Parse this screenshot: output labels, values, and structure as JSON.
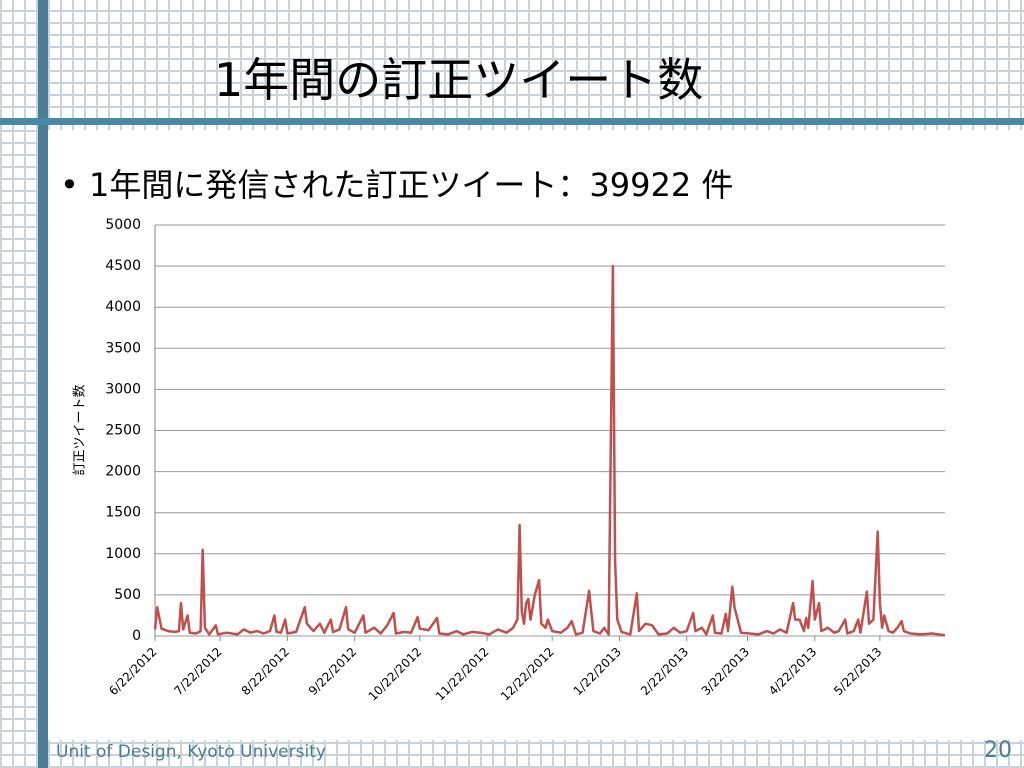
{
  "slide": {
    "title": "1年間の訂正ツイート数",
    "bullet": "1年間に発信された訂正ツイート：39922 件",
    "footer": "Unit of Design, Kyoto University",
    "page_number": "20"
  },
  "chart_data": {
    "type": "line",
    "y_label": "訂正ツイート数",
    "color": "#c0504d",
    "grid": true,
    "x": [
      "6/22/2012",
      "6/23/2012",
      "6/25/2012",
      "6/28/2012",
      "7/1/2012",
      "7/3/2012",
      "7/4/2012",
      "7/5/2012",
      "7/7/2012",
      "7/8/2012",
      "7/11/2012",
      "7/13/2012",
      "7/14/2012",
      "7/15/2012",
      "7/17/2012",
      "7/20/2012",
      "7/21/2012",
      "7/25/2012",
      "7/30/2012",
      "8/2/2012",
      "8/5/2012",
      "8/8/2012",
      "8/11/2012",
      "8/14/2012",
      "8/16/2012",
      "8/17/2012",
      "8/19/2012",
      "8/21/2012",
      "8/22/2012",
      "8/26/2012",
      "8/30/2012",
      "8/31/2012",
      "9/3/2012",
      "9/6/2012",
      "9/8/2012",
      "9/11/2012",
      "9/12/2012",
      "9/15/2012",
      "9/18/2012",
      "9/19/2012",
      "9/22/2012",
      "9/26/2012",
      "9/27/2012",
      "10/1/2012",
      "10/4/2012",
      "10/7/2012",
      "10/10/2012",
      "10/11/2012",
      "10/15/2012",
      "10/18/2012",
      "10/21/2012",
      "10/22/2012",
      "10/26/2012",
      "10/30/2012",
      "10/31/2012",
      "11/4/2012",
      "11/8/2012",
      "11/11/2012",
      "11/15/2012",
      "11/19/2012",
      "11/23/2012",
      "11/27/2012",
      "12/1/2012",
      "12/4/2012",
      "12/6/2012",
      "12/7/2012",
      "12/8/2012",
      "12/9/2012",
      "12/10/2012",
      "12/11/2012",
      "12/12/2012",
      "12/14/2012",
      "12/16/2012",
      "12/17/2012",
      "12/19/2012",
      "12/20/2012",
      "12/22/2012",
      "12/26/2012",
      "12/29/2012",
      "12/31/2012",
      "1/2/2013",
      "1/5/2013",
      "1/8/2013",
      "1/9/2013",
      "1/10/2013",
      "1/13/2013",
      "1/15/2013",
      "1/17/2013",
      "1/19/2013",
      "1/20/2013",
      "1/21/2013",
      "1/23/2013",
      "1/27/2013",
      "1/30/2013",
      "1/31/2013",
      "2/3/2013",
      "2/6/2013",
      "2/9/2013",
      "2/13/2013",
      "2/16/2013",
      "2/19/2013",
      "2/22/2013",
      "2/25/2013",
      "2/26/2013",
      "3/1/2013",
      "3/3/2013",
      "3/6/2013",
      "3/7/2013",
      "3/10/2013",
      "3/12/2013",
      "3/13/2013",
      "3/15/2013",
      "3/16/2013",
      "3/17/2013",
      "3/19/2013",
      "3/23/2013",
      "3/27/2013",
      "3/31/2013",
      "4/3/2013",
      "4/6/2013",
      "4/9/2013",
      "4/12/2013",
      "4/13/2013",
      "4/15/2013",
      "4/17/2013",
      "4/18/2013",
      "4/19/2013",
      "4/21/2013",
      "4/22/2013",
      "4/24/2013",
      "4/25/2013",
      "4/28/2013",
      "5/1/2013",
      "5/3/2013",
      "5/6/2013",
      "5/7/2013",
      "5/10/2013",
      "5/12/2013",
      "5/13/2013",
      "5/16/2013",
      "5/17/2013",
      "5/19/2013",
      "5/21/2013",
      "5/22/2013",
      "5/23/2013",
      "5/24/2013",
      "5/26/2013",
      "5/28/2013",
      "5/30/2013",
      "6/1/2013",
      "6/2/2013",
      "6/5/2013",
      "6/10/2013",
      "6/15/2013",
      "6/18/2013",
      "6/21/2013"
    ],
    "values": [
      80,
      350,
      90,
      60,
      50,
      60,
      400,
      80,
      250,
      40,
      30,
      60,
      1050,
      100,
      20,
      130,
      20,
      40,
      20,
      80,
      40,
      60,
      30,
      60,
      250,
      50,
      40,
      200,
      30,
      50,
      350,
      150,
      60,
      150,
      40,
      200,
      50,
      80,
      350,
      80,
      40,
      250,
      40,
      100,
      30,
      130,
      280,
      30,
      50,
      40,
      230,
      90,
      70,
      220,
      30,
      20,
      60,
      20,
      50,
      40,
      20,
      80,
      40,
      100,
      200,
      1350,
      300,
      150,
      400,
      450,
      200,
      500,
      680,
      150,
      100,
      200,
      60,
      40,
      100,
      180,
      20,
      40,
      550,
      300,
      60,
      30,
      100,
      20,
      4500,
      900,
      200,
      50,
      20,
      520,
      60,
      150,
      130,
      20,
      30,
      100,
      40,
      60,
      280,
      60,
      100,
      20,
      250,
      40,
      30,
      270,
      60,
      600,
      350,
      250,
      40,
      30,
      20,
      60,
      30,
      80,
      40,
      400,
      200,
      200,
      60,
      220,
      100,
      670,
      200,
      400,
      60,
      100,
      40,
      60,
      200,
      30,
      60,
      200,
      40,
      540,
      150,
      200,
      1270,
      400,
      100,
      250,
      60,
      40,
      100,
      180,
      60,
      30,
      20,
      30,
      20,
      10
    ],
    "xlim": [
      "6/22/2012",
      "6/21/2013"
    ],
    "xticks": [
      "6/22/2012",
      "7/22/2012",
      "8/22/2012",
      "9/22/2012",
      "10/22/2012",
      "11/22/2012",
      "12/22/2012",
      "1/22/2013",
      "2/22/2013",
      "3/22/2013",
      "4/22/2013",
      "5/22/2013"
    ],
    "ylim": [
      0,
      5000
    ],
    "yticks": [
      0,
      500,
      1000,
      1500,
      2000,
      2500,
      3000,
      3500,
      4000,
      4500,
      5000
    ]
  }
}
